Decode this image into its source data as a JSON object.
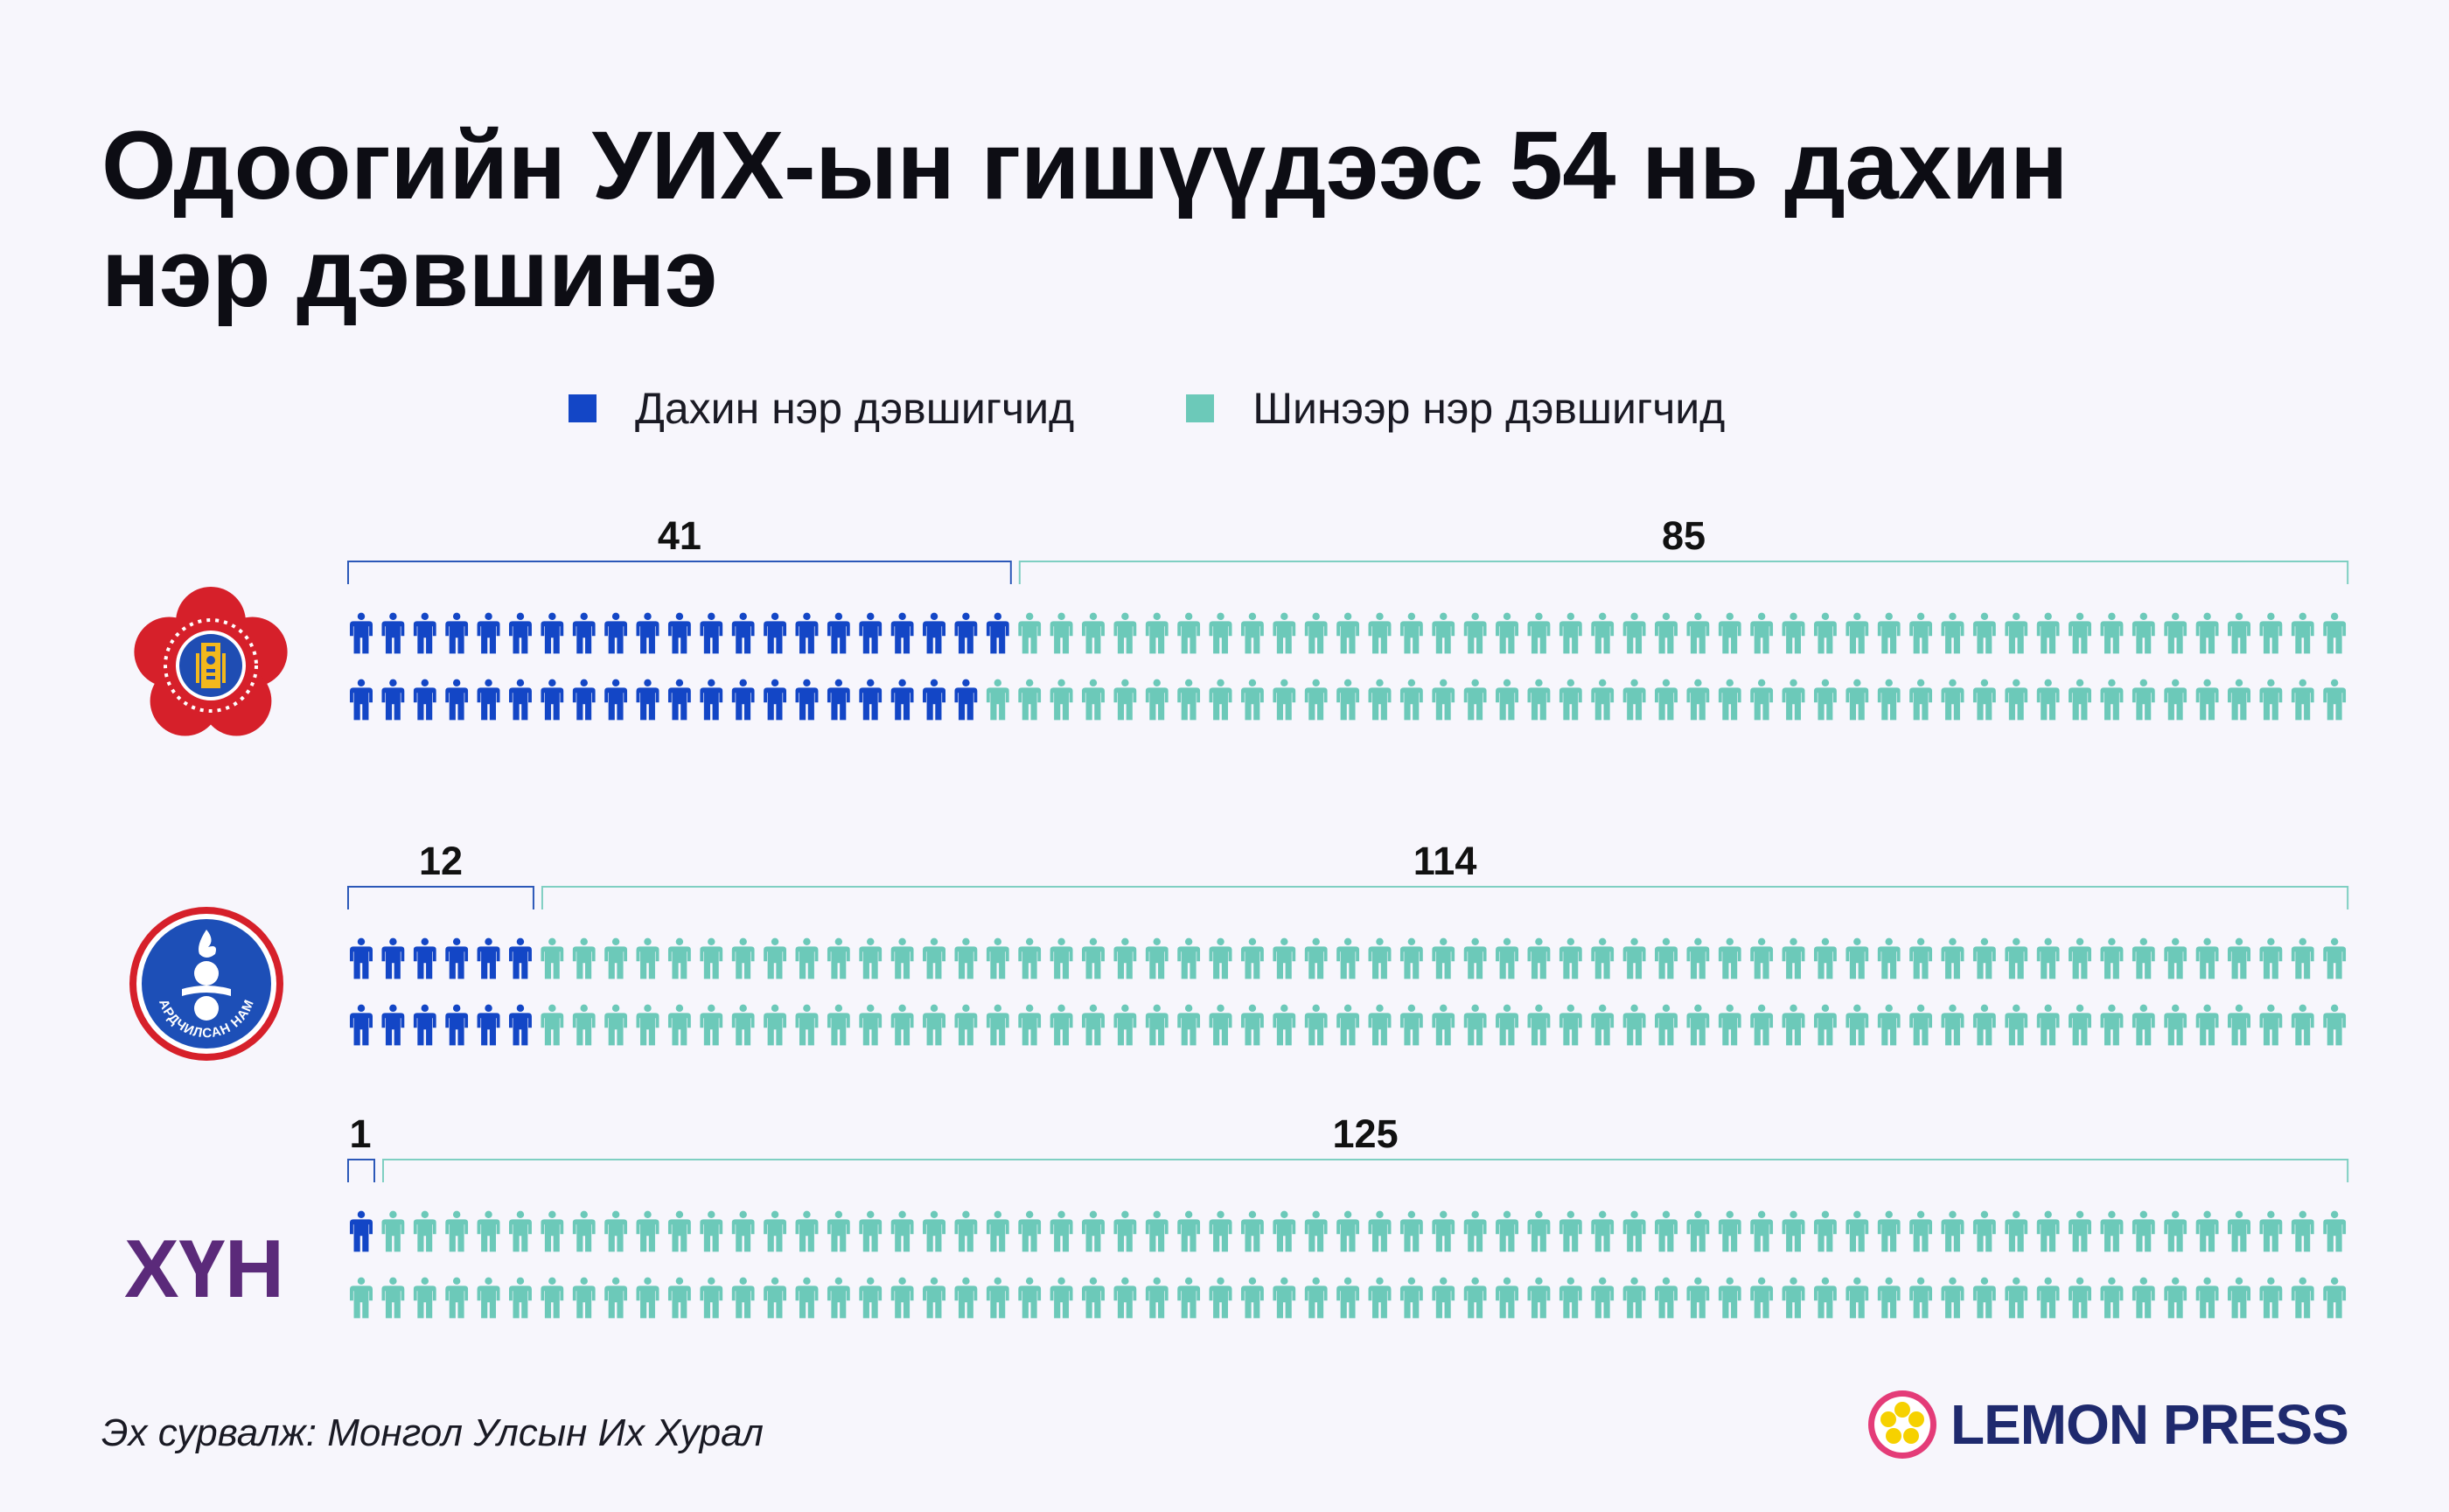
{
  "header": {
    "title_line1": "Одоогийн УИХ-ын гишүүдээс 54 нь дахин",
    "title_line2": "нэр дэвшинэ"
  },
  "legend": {
    "returning": "Дахин нэр дэвшигчид",
    "new": "Шинээр нэр дэвшигчид"
  },
  "colors": {
    "returning": "#1346c6",
    "new": "#6cc9b9",
    "bracket_returning": "#2c58b8",
    "bracket_new": "#7fcfc2",
    "mpp_red": "#d6202a",
    "dp_blue": "#1d4fb7",
    "xyh_purple": "#5b2a7a",
    "brand_navy": "#1f2a6e",
    "brand_yellow": "#f6d100",
    "brand_pink": "#e43c78"
  },
  "chart_data": {
    "type": "pictogram",
    "icon": "person-icon",
    "categories": [
      "МАН",
      "АН",
      "ХҮН"
    ],
    "series": [
      {
        "name": "Дахин нэр дэвшигчид",
        "values": [
          41,
          12,
          1
        ]
      },
      {
        "name": "Шинээр нэр дэвшигчид",
        "values": [
          85,
          114,
          125
        ]
      }
    ],
    "total_per_party": 126
  },
  "parties": [
    {
      "name": "МАН",
      "logo": "mpp-logo",
      "returning": "41",
      "new": "85"
    },
    {
      "name": "АН",
      "logo": "dp-logo",
      "logo_text": "АРДЧИЛСАН НАМ",
      "returning": "12",
      "new": "114"
    },
    {
      "name": "ХҮН",
      "logo": "xyh-logo",
      "logo_text": "ХҮН",
      "returning": "1",
      "new": "125"
    }
  ],
  "footer": {
    "source": "Эх сурвалж: Монгол Улсын Их Хурал",
    "brand": "LEMON PRESS"
  }
}
